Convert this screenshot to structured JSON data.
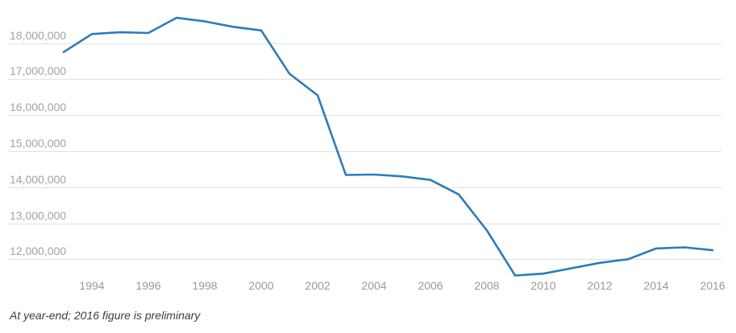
{
  "chart_data": {
    "type": "line",
    "title": "",
    "xlabel": "",
    "ylabel": "",
    "grid": true,
    "legend": false,
    "x": [
      1993,
      1994,
      1995,
      1996,
      1997,
      1998,
      1999,
      2000,
      2001,
      2002,
      2003,
      2004,
      2005,
      2006,
      2007,
      2008,
      2009,
      2010,
      2011,
      2012,
      2013,
      2014,
      2015,
      2016
    ],
    "values": [
      17750000,
      18250000,
      18300000,
      18280000,
      18700000,
      18600000,
      18450000,
      18350000,
      17150000,
      16550000,
      14340000,
      14350000,
      14300000,
      14200000,
      13800000,
      12800000,
      11550000,
      11600000,
      11750000,
      11900000,
      12000000,
      12300000,
      12330000,
      12250000
    ],
    "xlim": [
      1993,
      2016
    ],
    "ylim": [
      11400000,
      18800000
    ],
    "y_ticks": [
      {
        "value": 18000000,
        "label": "18,000,000"
      },
      {
        "value": 17000000,
        "label": "17,000,000"
      },
      {
        "value": 16000000,
        "label": "16,000,000"
      },
      {
        "value": 15000000,
        "label": "15,000,000"
      },
      {
        "value": 14000000,
        "label": "14,000,000"
      },
      {
        "value": 13000000,
        "label": "13,000,000"
      },
      {
        "value": 12000000,
        "label": "12,000,000"
      }
    ],
    "x_ticks": [
      {
        "value": 1994,
        "label": "1994"
      },
      {
        "value": 1996,
        "label": "1996"
      },
      {
        "value": 1998,
        "label": "1998"
      },
      {
        "value": 2000,
        "label": "2000"
      },
      {
        "value": 2002,
        "label": "2002"
      },
      {
        "value": 2004,
        "label": "2004"
      },
      {
        "value": 2006,
        "label": "2006"
      },
      {
        "value": 2008,
        "label": "2008"
      },
      {
        "value": 2010,
        "label": "2010"
      },
      {
        "value": 2012,
        "label": "2012"
      },
      {
        "value": 2014,
        "label": "2014"
      },
      {
        "value": 2016,
        "label": "2016"
      }
    ]
  },
  "footnote": "At year-end; 2016 figure is preliminary",
  "colors": {
    "line": "#2d7bbb",
    "grid": "#e0e0e0",
    "y_label": "#a2a2a2",
    "x_label": "#999999",
    "footnote": "#3c3c3c",
    "background": "#ffffff"
  }
}
